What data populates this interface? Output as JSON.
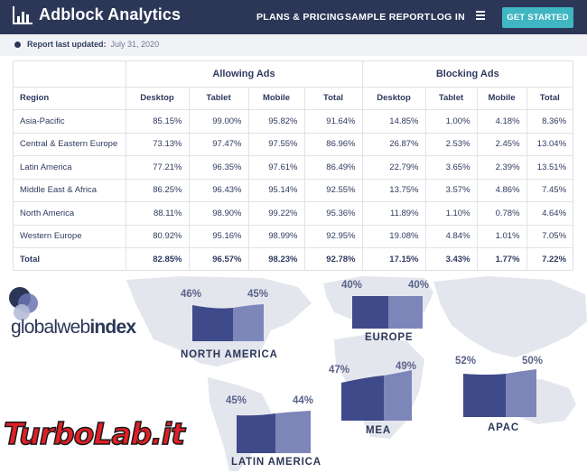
{
  "header": {
    "app_title": "Adblock Analytics",
    "nav": [
      "PLANS & PRICING",
      "SAMPLE REPORT",
      "LOG IN"
    ],
    "cta_label": "GET STARTED",
    "icons": {
      "brand": "bar-chart-icon",
      "menu": "hamburger-menu-icon"
    },
    "colors": {
      "header_bg": "#2c3758",
      "cta_bg": "#3fb6c2"
    }
  },
  "report": {
    "label": "Report last updated:",
    "date": "July 31, 2020"
  },
  "table": {
    "group_headers": [
      "Allowing Ads",
      "Blocking Ads"
    ],
    "columns": [
      "Region",
      "Desktop",
      "Tablet",
      "Mobile",
      "Total",
      "Desktop",
      "Tablet",
      "Mobile",
      "Total"
    ],
    "rows": [
      [
        "Asia-Pacific",
        "85.15%",
        "99.00%",
        "95.82%",
        "91.64%",
        "14.85%",
        "1.00%",
        "4.18%",
        "8.36%"
      ],
      [
        "Central & Eastern Europe",
        "73.13%",
        "97.47%",
        "97.55%",
        "86.96%",
        "26.87%",
        "2.53%",
        "2.45%",
        "13.04%"
      ],
      [
        "Latin America",
        "77.21%",
        "96.35%",
        "97.61%",
        "86.49%",
        "22.79%",
        "3.65%",
        "2.39%",
        "13.51%"
      ],
      [
        "Middle East & Africa",
        "86.25%",
        "96.43%",
        "95.14%",
        "92.55%",
        "13.75%",
        "3.57%",
        "4.86%",
        "7.45%"
      ],
      [
        "North America",
        "88.11%",
        "98.90%",
        "99.22%",
        "95.36%",
        "11.89%",
        "1.10%",
        "0.78%",
        "4.64%"
      ],
      [
        "Western Europe",
        "80.92%",
        "95.16%",
        "98.99%",
        "92.95%",
        "19.08%",
        "4.84%",
        "1.01%",
        "7.05%"
      ]
    ],
    "total": [
      "Total",
      "82.85%",
      "96.57%",
      "98.23%",
      "92.78%",
      "17.15%",
      "3.43%",
      "1.77%",
      "7.22%"
    ]
  },
  "map": {
    "brand_text_a": "global",
    "brand_text_b": "web",
    "brand_text_c": "index",
    "regions": [
      {
        "name": "NORTH AMERICA",
        "left_pct": "46%",
        "right_pct": "45%"
      },
      {
        "name": "EUROPE",
        "left_pct": "40%",
        "right_pct": "40%"
      },
      {
        "name": "MEA",
        "left_pct": "47%",
        "right_pct": "49%"
      },
      {
        "name": "APAC",
        "left_pct": "52%",
        "right_pct": "50%"
      },
      {
        "name": "LATIN AMERICA",
        "left_pct": "45%",
        "right_pct": "44%"
      }
    ],
    "colors": {
      "bar_dark": "#3f4a8a",
      "bar_light": "#7d86b8",
      "land": "#e4e6ee"
    }
  },
  "watermark": {
    "text": "TurboLab.it"
  }
}
